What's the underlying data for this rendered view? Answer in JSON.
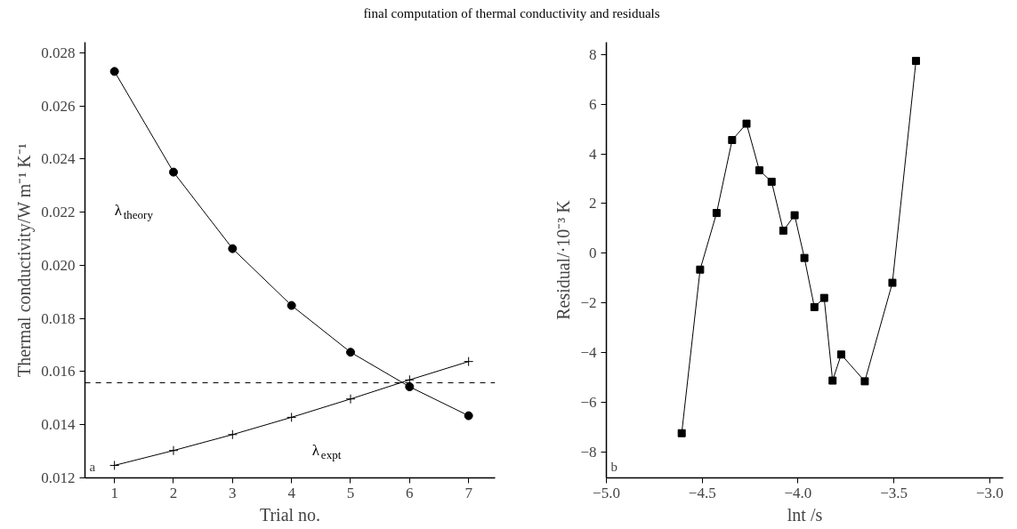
{
  "chart_data": [
    {
      "type": "line",
      "title": "final computation of thermal conductivity and residuals",
      "xlabel": "Trial no.",
      "ylabel": "Thermal conductivity/W m⁻¹ K⁻¹",
      "x": [
        1,
        2,
        3,
        4,
        5,
        6,
        7
      ],
      "series": [
        {
          "name": "λ$_{theory}$",
          "color": "#000000",
          "marker": "circle",
          "values": [
            0.0273,
            0.02351,
            0.02063,
            0.01849,
            0.01673,
            0.01543,
            0.01434
          ]
        },
        {
          "name": "λ$_{expt}$",
          "color": "#000000",
          "marker": "cross",
          "values": [
            0.01247,
            0.01303,
            0.01363,
            0.01428,
            0.01497,
            0.01569,
            0.01638
          ]
        }
      ],
      "ref_lines": [
        {
          "axis": "y",
          "value": 0.01558,
          "label": null,
          "line_style": "dashed",
          "color": "#000000"
        }
      ],
      "annotations": [
        "a"
      ],
      "xlim": [
        0.5,
        7.45
      ],
      "xticks": [
        1,
        2,
        3,
        4,
        5,
        6,
        7
      ],
      "ylim": [
        0.012,
        0.0284
      ],
      "yticks": [
        0.012,
        0.014,
        0.016,
        0.018,
        {
          "value": 0.02,
          "label": "0.020"
        },
        0.022,
        0.024,
        0.026,
        0.028
      ],
      "grid": false,
      "line_style": "solid"
    },
    {
      "type": "line",
      "xlabel": "lnt /s",
      "ylabel": "Residual/·10⁻³ K",
      "x": [
        -4.607,
        -4.511,
        -4.425,
        -4.344,
        -4.269,
        -4.202,
        -4.138,
        -4.077,
        -4.018,
        -3.967,
        -3.915,
        -3.864,
        -3.82,
        -3.775,
        -3.652,
        -3.508,
        -3.385
      ],
      "series": [
        {
          "color": "#000000",
          "marker": "square",
          "values": [
            -7.25,
            -0.66,
            1.62,
            4.56,
            5.22,
            3.34,
            2.88,
            0.91,
            1.53,
            -0.19,
            -2.17,
            -1.8,
            -5.13,
            -4.08,
            -5.16,
            -1.19,
            7.75
          ]
        }
      ],
      "annotations": [
        "b"
      ],
      "xlim": [
        -5.0,
        -2.93
      ],
      "xticks": [
        {
          "value": -5,
          "label": "−5.0"
        },
        {
          "value": -4.5,
          "label": "−4.5"
        },
        {
          "value": -4,
          "label": "−4.0"
        },
        {
          "value": -3.5,
          "label": "−3.5"
        },
        {
          "value": -3,
          "label": "−3.0"
        }
      ],
      "ylim": [
        -9.05,
        8.5
      ],
      "yticks": [
        {
          "value": -8,
          "label": "−8"
        },
        {
          "value": -6,
          "label": "−6"
        },
        {
          "value": -4,
          "label": "−4"
        },
        {
          "value": -2,
          "label": "−2"
        },
        0,
        2,
        4,
        6,
        8
      ],
      "grid": false,
      "line_style": "solid"
    }
  ]
}
